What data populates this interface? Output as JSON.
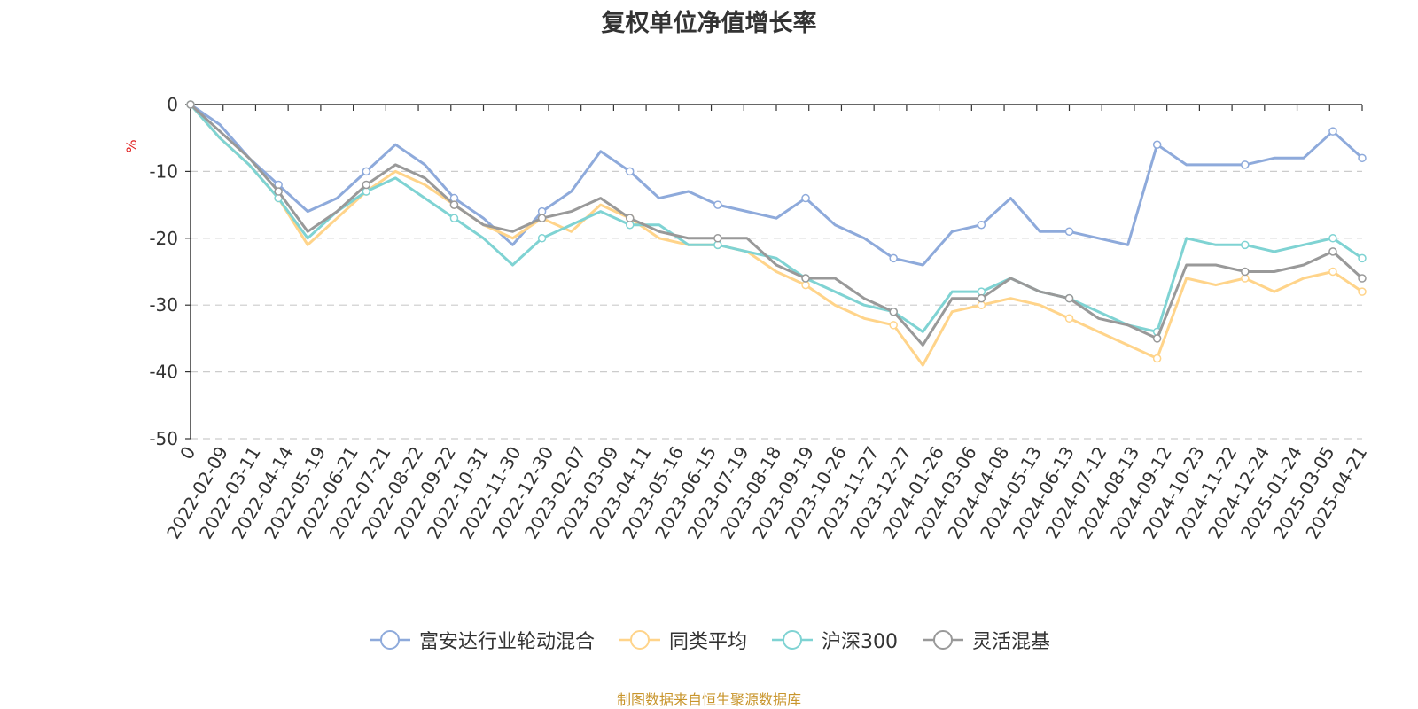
{
  "chart_data": {
    "type": "line",
    "title": "复权单位净值增长率",
    "ylabel": "%",
    "ylim": [
      -50,
      0
    ],
    "yticks": [
      "0",
      "-10",
      "-20",
      "-30",
      "-40",
      "-50"
    ],
    "x_tick_labels": [
      "0",
      "2022-02-09",
      "2022-03-11",
      "2022-04-14",
      "2022-05-19",
      "2022-06-21",
      "2022-07-21",
      "2022-08-22",
      "2022-09-22",
      "2022-10-31",
      "2022-11-30",
      "2022-12-30",
      "2023-02-07",
      "2023-03-09",
      "2023-04-11",
      "2023-05-16",
      "2023-06-15",
      "2023-07-19",
      "2023-08-18",
      "2023-09-19",
      "2023-10-26",
      "2023-11-27",
      "2023-12-27",
      "2024-01-26",
      "2024-03-06",
      "2024-04-08",
      "2024-05-13",
      "2024-06-13",
      "2024-07-12",
      "2024-08-13",
      "2024-09-12",
      "2024-10-23",
      "2024-11-22",
      "2024-12-24",
      "2025-01-24",
      "2025-03-05",
      "2025-04-21"
    ],
    "grid": true,
    "legend_position": "bottom",
    "series": [
      {
        "name": "富安达行业轮动混合",
        "color": "#8eaadb",
        "values": [
          0,
          -3,
          -8,
          -12,
          -16,
          -14,
          -10,
          -6,
          -9,
          -14,
          -17,
          -21,
          -16,
          -13,
          -7,
          -10,
          -14,
          -13,
          -15,
          -16,
          -17,
          -14,
          -18,
          -20,
          -23,
          -24,
          -19,
          -18,
          -14,
          -19,
          -19,
          -20,
          -21,
          -6,
          -9,
          -9,
          -9,
          -8,
          -8,
          -4,
          -8
        ]
      },
      {
        "name": "同类平均",
        "color": "#ffd48a",
        "values": [
          0,
          -5,
          -9,
          -14,
          -21,
          -17,
          -13,
          -10,
          -12,
          -15,
          -18,
          -20,
          -17,
          -19,
          -15,
          -17,
          -20,
          -21,
          -21,
          -22,
          -25,
          -27,
          -30,
          -32,
          -33,
          -39,
          -31,
          -30,
          -29,
          -30,
          -32,
          -34,
          -36,
          -38,
          -26,
          -27,
          -26,
          -28,
          -26,
          -25,
          -28
        ]
      },
      {
        "name": "沪深300",
        "color": "#7fd3d3",
        "values": [
          0,
          -5,
          -9,
          -14,
          -20,
          -16,
          -13,
          -11,
          -14,
          -17,
          -20,
          -24,
          -20,
          -18,
          -16,
          -18,
          -18,
          -21,
          -21,
          -22,
          -23,
          -26,
          -28,
          -30,
          -31,
          -34,
          -28,
          -28,
          -26,
          -28,
          -29,
          -31,
          -33,
          -34,
          -20,
          -21,
          -21,
          -22,
          -21,
          -20,
          -23
        ]
      },
      {
        "name": "灵活混基",
        "color": "#999999",
        "values": [
          0,
          -4,
          -8,
          -13,
          -19,
          -16,
          -12,
          -9,
          -11,
          -15,
          -18,
          -19,
          -17,
          -16,
          -14,
          -17,
          -19,
          -20,
          -20,
          -20,
          -24,
          -26,
          -26,
          -29,
          -31,
          -36,
          -29,
          -29,
          -26,
          -28,
          -29,
          -32,
          -33,
          -35,
          -24,
          -24,
          -25,
          -25,
          -24,
          -22,
          -26
        ]
      }
    ]
  },
  "source_text": "制图数据来自恒生聚源数据库"
}
